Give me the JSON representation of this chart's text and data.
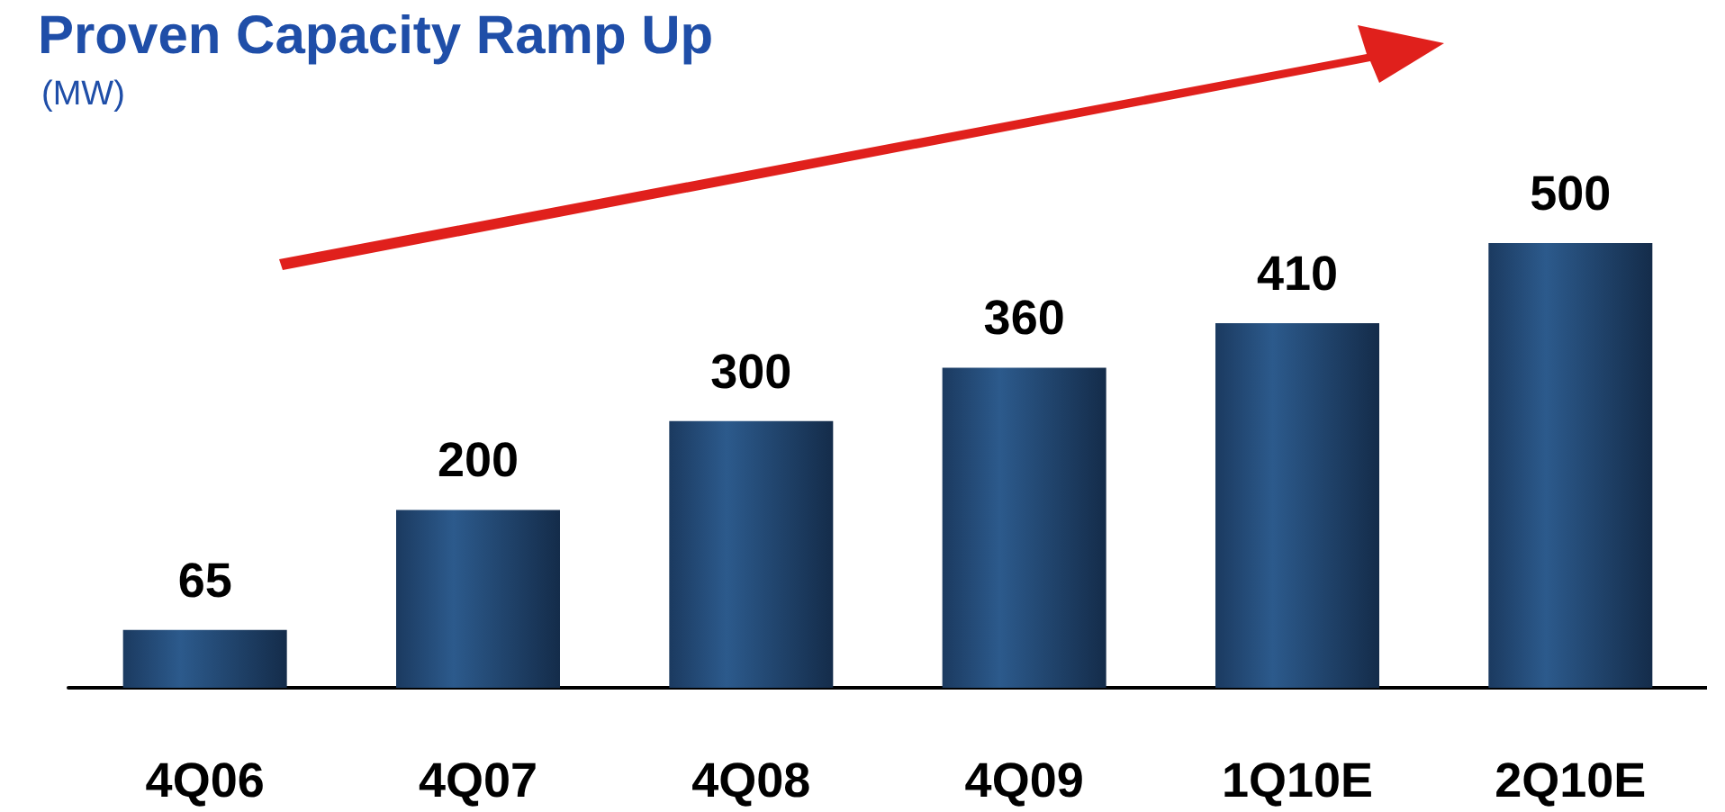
{
  "chart_data": {
    "type": "bar",
    "title": "Proven Capacity Ramp Up",
    "subtitle": "(MW)",
    "categories": [
      "4Q06",
      "4Q07",
      "4Q08",
      "4Q09",
      "1Q10E",
      "2Q10E"
    ],
    "values": [
      65,
      200,
      300,
      360,
      410,
      500
    ],
    "color": "#2c5a8c",
    "data_labels": true
  }
}
